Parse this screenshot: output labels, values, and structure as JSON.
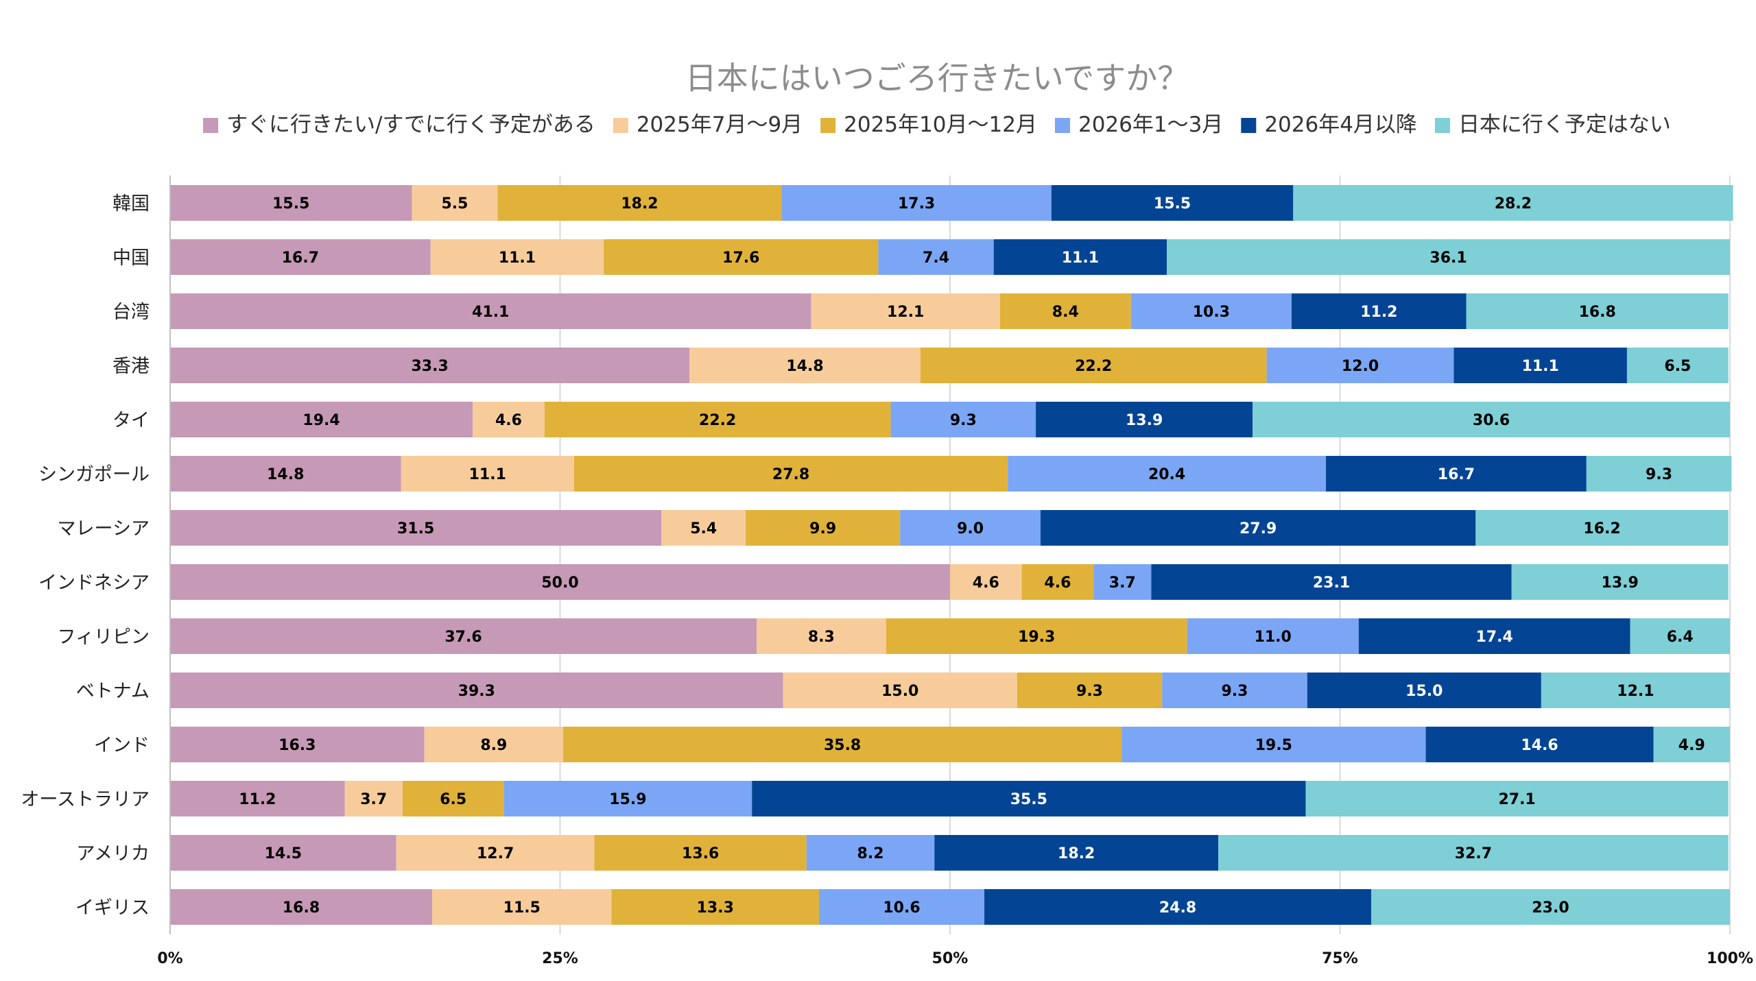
{
  "chart_data": {
    "type": "bar",
    "orientation": "horizontal",
    "stacked": "percent",
    "title": "日本にはいつごろ行きたいですか？",
    "xlabel": "",
    "ylabel": "",
    "xlim": [
      0,
      100
    ],
    "x_ticks": [
      "0%",
      "25%",
      "50%",
      "75%",
      "100%"
    ],
    "grid": true,
    "legend_position": "top",
    "categories": [
      "韓国",
      "中国",
      "台湾",
      "香港",
      "タイ",
      "シンガポール",
      "マレーシア",
      "インドネシア",
      "フィリピン",
      "ベトナム",
      "インド",
      "オーストラリア",
      "アメリカ",
      "イギリス"
    ],
    "series": [
      {
        "name": "すぐに行きたい/すでに行く予定がある",
        "color": "#c699b6",
        "label_color": "#000000",
        "values": [
          15.5,
          16.7,
          41.1,
          33.3,
          19.4,
          14.8,
          31.5,
          50.0,
          37.6,
          39.3,
          16.3,
          11.2,
          14.5,
          16.8
        ]
      },
      {
        "name": "2025年7月～9月",
        "color": "#f7cc9a",
        "label_color": "#000000",
        "values": [
          5.5,
          11.1,
          12.1,
          14.8,
          4.6,
          11.1,
          5.4,
          4.6,
          8.3,
          15.0,
          8.9,
          3.7,
          12.7,
          11.5
        ]
      },
      {
        "name": "2025年10月～12月",
        "color": "#e0b23a",
        "label_color": "#000000",
        "values": [
          18.2,
          17.6,
          8.4,
          22.2,
          22.2,
          27.8,
          9.9,
          4.6,
          19.3,
          9.3,
          35.8,
          6.5,
          13.6,
          13.3
        ]
      },
      {
        "name": "2026年1～3月",
        "color": "#7ba6f5",
        "label_color": "#000000",
        "values": [
          17.3,
          7.4,
          10.3,
          12.0,
          9.3,
          20.4,
          9.0,
          3.7,
          11.0,
          9.3,
          19.5,
          15.9,
          8.2,
          10.6
        ]
      },
      {
        "name": "2026年4月以降",
        "color": "#034594",
        "label_color": "#ffffff",
        "values": [
          15.5,
          11.1,
          11.2,
          11.1,
          13.9,
          16.7,
          27.9,
          23.1,
          17.4,
          15.0,
          14.6,
          35.5,
          18.2,
          24.8
        ]
      },
      {
        "name": "日本に行く予定はない",
        "color": "#7ecfd6",
        "label_color": "#000000",
        "values": [
          28.2,
          36.1,
          16.8,
          6.5,
          30.6,
          9.3,
          16.2,
          13.9,
          6.4,
          12.1,
          4.9,
          27.1,
          32.7,
          23.0
        ]
      }
    ]
  }
}
